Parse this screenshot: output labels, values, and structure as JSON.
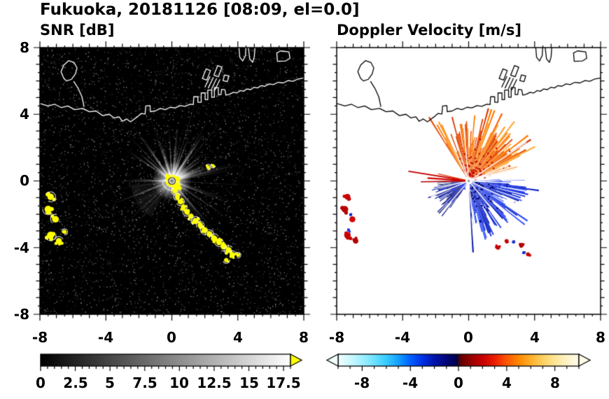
{
  "header": {
    "title": "Fukuoka, 20181126 [08:09, el=0.0]"
  },
  "panels": {
    "snr": {
      "title": "SNR [dB]"
    },
    "doppler": {
      "title": "Doppler Velocity [m/s]"
    }
  },
  "axes": {
    "xtick_labels": [
      "-8",
      "-4",
      "0",
      "4",
      "8"
    ],
    "ytick_labels": [
      "8",
      "4",
      "0",
      "-4",
      "-8"
    ]
  },
  "colorbar_labels": {
    "snr": [
      "0",
      "2.5",
      "5",
      "7.5",
      "10",
      "12.5",
      "15",
      "17.5"
    ],
    "doppler": [
      "-8",
      "-4",
      "0",
      "4",
      "8"
    ]
  },
  "map": {
    "coastlines": [
      {
        "closed": false,
        "points": [
          [
            -8,
            4.65
          ],
          [
            -7.5,
            4.5
          ],
          [
            -7.1,
            4.6
          ],
          [
            -6.7,
            4.4
          ],
          [
            -6.3,
            4.5
          ],
          [
            -5.9,
            4.28
          ],
          [
            -5.4,
            4.35
          ],
          [
            -5.0,
            4.15
          ],
          [
            -4.6,
            4.2
          ],
          [
            -4.2,
            3.92
          ],
          [
            -3.8,
            4.0
          ],
          [
            -3.5,
            3.78
          ],
          [
            -3.2,
            3.85
          ],
          [
            -3.0,
            3.58
          ],
          [
            -2.75,
            3.72
          ],
          [
            -2.5,
            3.55
          ],
          [
            -2.3,
            3.7
          ],
          [
            -2.05,
            3.88
          ],
          [
            -1.85,
            4.05
          ],
          [
            -1.62,
            4.02
          ],
          [
            -1.58,
            4.5
          ],
          [
            -1.32,
            4.52
          ],
          [
            -1.3,
            4.15
          ],
          [
            -1.0,
            4.2
          ],
          [
            -0.7,
            4.35
          ],
          [
            -0.4,
            4.28
          ],
          [
            -0.1,
            4.42
          ],
          [
            0.2,
            4.38
          ],
          [
            0.5,
            4.52
          ],
          [
            0.8,
            4.48
          ],
          [
            1.1,
            4.6
          ],
          [
            1.3,
            4.58
          ],
          [
            1.33,
            5.05
          ],
          [
            1.58,
            5.05
          ],
          [
            1.58,
            4.72
          ],
          [
            1.78,
            4.72
          ],
          [
            1.78,
            5.28
          ],
          [
            2.02,
            5.28
          ],
          [
            2.02,
            4.88
          ],
          [
            2.18,
            4.88
          ],
          [
            2.18,
            5.45
          ],
          [
            2.42,
            5.45
          ],
          [
            2.42,
            5.02
          ],
          [
            2.58,
            5.02
          ],
          [
            2.58,
            5.6
          ],
          [
            2.82,
            5.6
          ],
          [
            2.82,
            5.18
          ],
          [
            2.98,
            5.18
          ],
          [
            3.02,
            5.5
          ],
          [
            3.22,
            5.46
          ],
          [
            3.28,
            5.15
          ],
          [
            3.5,
            5.2
          ],
          [
            3.72,
            5.32
          ],
          [
            3.95,
            5.28
          ],
          [
            4.15,
            5.42
          ],
          [
            4.35,
            5.38
          ],
          [
            4.55,
            5.52
          ],
          [
            4.78,
            5.48
          ],
          [
            4.98,
            5.62
          ],
          [
            5.2,
            5.58
          ],
          [
            5.42,
            5.72
          ],
          [
            5.65,
            5.68
          ],
          [
            5.9,
            5.82
          ],
          [
            6.15,
            5.78
          ],
          [
            6.45,
            5.92
          ],
          [
            6.75,
            5.88
          ],
          [
            7.05,
            6.02
          ],
          [
            7.35,
            5.98
          ],
          [
            7.65,
            6.12
          ],
          [
            8,
            6.18
          ]
        ]
      },
      {
        "closed": true,
        "points": [
          [
            -6.55,
            6.15
          ],
          [
            -6.72,
            6.55
          ],
          [
            -6.55,
            6.95
          ],
          [
            -6.25,
            7.22
          ],
          [
            -5.92,
            7.1
          ],
          [
            -5.75,
            6.78
          ],
          [
            -5.85,
            6.42
          ],
          [
            -6.08,
            6.1
          ],
          [
            -6.38,
            6.0
          ]
        ]
      },
      {
        "closed": false,
        "points": [
          [
            -5.95,
            5.98
          ],
          [
            -5.68,
            5.55
          ],
          [
            -5.45,
            5.05
          ],
          [
            -5.32,
            4.45
          ]
        ]
      },
      {
        "closed": false,
        "points": [
          [
            2.0,
            5.62
          ],
          [
            2.32,
            6.28
          ]
        ]
      },
      {
        "closed": false,
        "points": [
          [
            2.2,
            5.56
          ],
          [
            2.52,
            6.22
          ]
        ]
      },
      {
        "closed": false,
        "points": [
          [
            2.4,
            5.5
          ],
          [
            2.72,
            6.16
          ]
        ]
      },
      {
        "closed": false,
        "points": [
          [
            2.6,
            5.44
          ],
          [
            2.92,
            6.1
          ]
        ]
      },
      {
        "closed": true,
        "points": [
          [
            1.85,
            6.15
          ],
          [
            2.08,
            6.72
          ],
          [
            2.34,
            6.62
          ],
          [
            2.12,
            6.05
          ]
        ]
      },
      {
        "closed": true,
        "points": [
          [
            2.55,
            6.35
          ],
          [
            2.78,
            6.92
          ],
          [
            3.04,
            6.82
          ],
          [
            2.82,
            6.25
          ]
        ]
      },
      {
        "closed": true,
        "points": [
          [
            3.1,
            6.02
          ],
          [
            3.2,
            6.36
          ],
          [
            3.46,
            6.3
          ],
          [
            3.36,
            5.96
          ]
        ]
      },
      {
        "closed": false,
        "points": [
          [
            4.05,
            8.2
          ],
          [
            4.12,
            7.42
          ],
          [
            4.3,
            7.2
          ],
          [
            4.46,
            7.52
          ],
          [
            4.5,
            8.2
          ]
        ]
      },
      {
        "closed": false,
        "points": [
          [
            4.62,
            8.2
          ],
          [
            4.72,
            7.32
          ],
          [
            4.9,
            7.12
          ],
          [
            5.0,
            7.45
          ],
          [
            5.05,
            8.2
          ]
        ]
      },
      {
        "closed": true,
        "points": [
          [
            6.4,
            7.18
          ],
          [
            6.36,
            7.68
          ],
          [
            6.6,
            7.8
          ],
          [
            7.1,
            7.74
          ],
          [
            7.16,
            7.36
          ],
          [
            6.9,
            7.2
          ]
        ]
      }
    ]
  },
  "chart_data": [
    {
      "type": "heatmap",
      "title": "SNR [dB]",
      "xlim": [
        -8,
        8
      ],
      "ylim": [
        -8,
        8
      ],
      "xticks": [
        -8,
        -4,
        0,
        4,
        8
      ],
      "yticks": [
        -8,
        -4,
        0,
        4,
        8
      ],
      "summary": "Radar SNR field on black background: speckle noise, bright radial beams fanning mostly north and east from radar at origin, yellow strong-echo clutter at the radar site, a chain of yellow coastal clutter running southeast from (0.2,-0.6) to (4.0,-4.5), and isolated yellow terrain echoes near x=-7 between y=-1 and y=-3.6. White coastline of Hakata Bay across the top.",
      "colorbar": {
        "range": [
          0,
          18
        ],
        "ticks": [
          0,
          2.5,
          5,
          7.5,
          10,
          12.5,
          15,
          17.5
        ],
        "minor_step": 0.5,
        "stops": [
          {
            "v": 0,
            "c": "#000000"
          },
          {
            "v": 17.5,
            "c": "#f8f8f8"
          },
          {
            "v": 18,
            "c": "#ffffff"
          }
        ],
        "over_arrow": "#ffff00"
      },
      "features": {
        "seed": 42,
        "noise_count": 8200,
        "streaks": 95,
        "bright_rays": 14,
        "long_rays": 7,
        "glow_radius_px": 28,
        "shadow_rays": [
          {
            "angle": 205,
            "r": 3.3,
            "w": 1.7
          },
          {
            "angle": 212,
            "r": 2.7,
            "w": 1.3
          },
          {
            "angle": 197,
            "r": 2.1,
            "w": 1.1
          }
        ],
        "clutter": [
          [
            0,
            0,
            0.38
          ],
          [
            0.28,
            -0.35,
            0.2
          ],
          [
            -0.22,
            0.22,
            0.16
          ],
          [
            2.2,
            0.82,
            0.11
          ],
          [
            2.5,
            0.92,
            0.09
          ],
          [
            0.18,
            -0.62,
            0.14
          ],
          [
            0.34,
            -0.95,
            0.15
          ],
          [
            0.52,
            -1.25,
            0.16
          ],
          [
            0.7,
            -1.55,
            0.15
          ],
          [
            0.92,
            -1.85,
            0.17
          ],
          [
            1.16,
            -2.12,
            0.16
          ],
          [
            1.44,
            -2.4,
            0.18
          ],
          [
            1.72,
            -2.66,
            0.16
          ],
          [
            2.0,
            -2.95,
            0.18
          ],
          [
            2.28,
            -3.18,
            0.17
          ],
          [
            2.56,
            -3.45,
            0.19
          ],
          [
            2.86,
            -3.68,
            0.17
          ],
          [
            3.14,
            -3.92,
            0.19
          ],
          [
            3.44,
            -4.15,
            0.18
          ],
          [
            3.66,
            -4.42,
            0.16
          ],
          [
            3.3,
            -4.75,
            0.13
          ],
          [
            4.02,
            -4.45,
            0.11
          ],
          [
            -7.35,
            -0.95,
            0.2
          ],
          [
            -7.5,
            -1.7,
            0.22
          ],
          [
            -7.05,
            -2.3,
            0.2
          ],
          [
            -7.35,
            -3.25,
            0.22
          ],
          [
            -6.85,
            -3.6,
            0.18
          ],
          [
            -6.5,
            -3.05,
            0.12
          ]
        ]
      }
    },
    {
      "type": "heatmap",
      "title": "Doppler Velocity [m/s]",
      "xlim": [
        -8,
        8
      ],
      "ylim": [
        -8,
        8
      ],
      "xticks": [
        -8,
        -4,
        0,
        4,
        8
      ],
      "yticks": [
        -8,
        -4,
        0,
        4,
        8
      ],
      "summary": "Doppler velocity on white background: positive (orange/red, outbound) fan north-northeast of radar out to ~4, negative (blue/navy, inbound) fan southeast out to ~3.8, compact navy wedge southwest, thin red streaks due west, and scattered red/blue terrain echoes near x=-7 and around (2..3.6,-3.6..-4.4). Black coastline across the top.",
      "colorbar": {
        "range": [
          -10,
          10
        ],
        "ticks": [
          -8,
          -4,
          0,
          4,
          8
        ],
        "minor_step": 1,
        "stops": [
          {
            "v": -10,
            "c": "#f2ffff"
          },
          {
            "v": -9,
            "c": "#ccf8ff"
          },
          {
            "v": -8,
            "c": "#a0f0ff"
          },
          {
            "v": -7,
            "c": "#6ce2ff"
          },
          {
            "v": -6,
            "c": "#38ccff"
          },
          {
            "v": -5,
            "c": "#14a0ff"
          },
          {
            "v": -4,
            "c": "#0060ff"
          },
          {
            "v": -3,
            "c": "#0030e6"
          },
          {
            "v": -2,
            "c": "#0014aa"
          },
          {
            "v": -1,
            "c": "#000578"
          },
          {
            "v": -0.1,
            "c": "#00004a"
          },
          {
            "v": 0.1,
            "c": "#5a0000"
          },
          {
            "v": 1,
            "c": "#960000"
          },
          {
            "v": 2,
            "c": "#c80000"
          },
          {
            "v": 3,
            "c": "#eb1e00"
          },
          {
            "v": 4,
            "c": "#ff5500"
          },
          {
            "v": 5,
            "c": "#ff8800"
          },
          {
            "v": 6,
            "c": "#ffb02d"
          },
          {
            "v": 7,
            "c": "#ffd060"
          },
          {
            "v": 8,
            "c": "#ffe696"
          },
          {
            "v": 9,
            "c": "#fff4c8"
          },
          {
            "v": 10,
            "c": "#fffbe8"
          }
        ],
        "under_arrow": "#f4feff",
        "over_arrow": "#fffdea"
      },
      "features": {
        "fans": [
          {
            "name": "outbound-orange",
            "a0": 14,
            "a1": 122,
            "rmin": 1.7,
            "rmax": 4.0,
            "r_inner": 0.22,
            "seed": 11,
            "palette": [
              "#e84800",
              "#f66300",
              "#ff7d00",
              "#ff941e",
              "#ffab3a",
              "#d83800"
            ],
            "speckle": "#c00000",
            "speckle_n": 90,
            "gap_rays": 8
          },
          {
            "name": "inbound-blue",
            "a0": -87,
            "a1": 3,
            "rmin": 1.5,
            "rmax": 3.8,
            "r_inner": 0.22,
            "seed": 23,
            "palette": [
              "#1430e0",
              "#0a20c8",
              "#2a48f4",
              "#0818a8",
              "#3c5aff"
            ],
            "speckle": "#000070",
            "speckle_n": 60,
            "gap_rays": 5
          },
          {
            "name": "inbound-navy",
            "a0": 183,
            "a1": 237,
            "rmin": 1.0,
            "rmax": 2.35,
            "r_inner": 0.2,
            "seed": 31,
            "palette": [
              "#000082",
              "#000a96",
              "#041070",
              "#00149e"
            ],
            "speckle": "#2848ff",
            "speckle_n": 22,
            "gap_rays": 3
          }
        ],
        "rays": [
          {
            "angle": 171,
            "r": 3.7,
            "w": 1.8,
            "color": "#c80000"
          },
          {
            "angle": 176,
            "r": 2.5,
            "w": 2.2,
            "color": "#d20000"
          },
          {
            "angle": 181,
            "r": 2.9,
            "w": 1.6,
            "color": "#b00000"
          },
          {
            "angle": 167,
            "r": 1.9,
            "w": 1.4,
            "color": "#e03000"
          }
        ],
        "blobs": [
          {
            "x": -7.35,
            "y": -0.95,
            "r": 0.18,
            "c": "#c80000"
          },
          {
            "x": -7.5,
            "y": -1.7,
            "r": 0.2,
            "c": "#b40000"
          },
          {
            "x": -7.05,
            "y": -2.3,
            "r": 0.18,
            "c": "#d20000"
          },
          {
            "x": -7.35,
            "y": -3.25,
            "r": 0.2,
            "c": "#c80000"
          },
          {
            "x": -6.85,
            "y": -3.6,
            "r": 0.16,
            "c": "#b40000"
          },
          {
            "x": -7.15,
            "y": -2.02,
            "r": 0.08,
            "c": "#0a28c8"
          },
          {
            "x": -7.28,
            "y": -2.95,
            "r": 0.07,
            "c": "#1430d2"
          },
          {
            "x": 1.78,
            "y": -4.0,
            "r": 0.13,
            "c": "#c80000"
          },
          {
            "x": 2.3,
            "y": -3.6,
            "r": 0.12,
            "c": "#c80000"
          },
          {
            "x": 2.72,
            "y": -3.66,
            "r": 0.1,
            "c": "#1e32d2"
          },
          {
            "x": 3.2,
            "y": -3.85,
            "r": 0.14,
            "c": "#b40000"
          },
          {
            "x": 3.6,
            "y": -4.4,
            "r": 0.12,
            "c": "#c80000"
          },
          {
            "x": 3.34,
            "y": -4.3,
            "r": 0.08,
            "c": "#0a28c8"
          }
        ]
      }
    }
  ]
}
